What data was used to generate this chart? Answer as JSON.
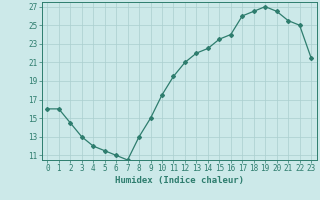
{
  "xlabel": "Humidex (Indice chaleur)",
  "x_values": [
    0,
    1,
    2,
    3,
    4,
    5,
    6,
    7,
    8,
    9,
    10,
    11,
    12,
    13,
    14,
    15,
    16,
    17,
    18,
    19,
    20,
    21,
    22,
    23
  ],
  "y_values": [
    16,
    16,
    14.5,
    13,
    12,
    11.5,
    11,
    10.5,
    13,
    15,
    17.5,
    19.5,
    21,
    22,
    22.5,
    23.5,
    24,
    26,
    26.5,
    27,
    26.5,
    25.5,
    25,
    21.5
  ],
  "ylim": [
    10.5,
    27.5
  ],
  "yticks": [
    11,
    13,
    15,
    17,
    19,
    21,
    23,
    25,
    27
  ],
  "xlim": [
    -0.5,
    23.5
  ],
  "line_color": "#2e7d6e",
  "marker_color": "#2e7d6e",
  "bg_color": "#cce9e9",
  "grid_color": "#aacfcf",
  "axis_label_color": "#2e7d6e",
  "tick_label_color": "#2e7d6e",
  "font_size_xlabel": 6.5,
  "font_size_ticks": 5.5
}
